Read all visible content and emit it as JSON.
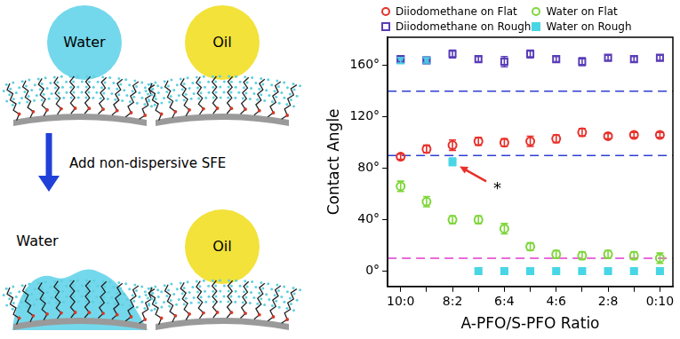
{
  "diagram": {
    "panels": [
      {
        "label": "Water"
      },
      {
        "label": "Oil"
      },
      {
        "label": "Water"
      },
      {
        "label": "Oil"
      }
    ],
    "arrow_label": "Add non-dispersive SFE"
  },
  "chart_data": {
    "type": "scatter",
    "x_label": "A-PFO/S-PFO Ratio",
    "y_label": "Contact Angle",
    "categories": [
      "10:0",
      null,
      "8:2",
      null,
      "6:4",
      null,
      "4:6",
      null,
      "2:8",
      null,
      "0:10"
    ],
    "series": [
      {
        "name": "Diiodomethane on Flat",
        "color": "#e8302a",
        "marker": "open_circle",
        "values": [
          89,
          95,
          98,
          101,
          100,
          101,
          103,
          108,
          105,
          106,
          106
        ],
        "errors": [
          2,
          3,
          4,
          3,
          3,
          4,
          3,
          3,
          2,
          2,
          2
        ]
      },
      {
        "name": "Diiodomethane on Rough",
        "color": "#5a3db8",
        "marker": "open_square",
        "values": [
          165,
          164,
          169,
          165,
          163,
          169,
          165,
          163,
          166,
          165,
          166
        ],
        "errors": [
          2,
          2,
          3,
          2,
          4,
          3,
          2,
          3,
          2,
          2,
          2
        ]
      },
      {
        "name": "Water on Flat",
        "color": "#7ed63a",
        "marker": "open_circle",
        "values": [
          66,
          54,
          40,
          40,
          33,
          19,
          13,
          12,
          13,
          12,
          10
        ],
        "errors": [
          4,
          4,
          3,
          3,
          4,
          3,
          3,
          3,
          3,
          3,
          4
        ]
      },
      {
        "name": "Water on Rough",
        "color": "#48d6e6",
        "marker": "square",
        "values": [
          164,
          164,
          85,
          0,
          0,
          0,
          0,
          0,
          0,
          0,
          0
        ],
        "errors": [
          2,
          2,
          3,
          0,
          0,
          0,
          0,
          0,
          0,
          0,
          0
        ]
      }
    ],
    "ylim": [
      -12,
      182
    ],
    "yticks": [
      {
        "value": 0,
        "label": "0°"
      },
      {
        "value": 40,
        "label": "40°"
      },
      {
        "value": 80,
        "label": "80°"
      },
      {
        "value": 120,
        "label": "120°"
      },
      {
        "value": 160,
        "label": "160°"
      }
    ],
    "grid": false,
    "legend": "top",
    "reference_lines": [
      {
        "value": 140,
        "color": "#2e3fd0",
        "line_style": "dashed"
      },
      {
        "value": 90,
        "color": "#2e3fd0",
        "line_style": "dashed"
      },
      {
        "value": 10,
        "color": "#e23ad0",
        "line_style": "dashed"
      }
    ],
    "annotations": [
      {
        "text": "*",
        "x": "8:2",
        "y": 85,
        "color": "#e8302a"
      }
    ]
  }
}
